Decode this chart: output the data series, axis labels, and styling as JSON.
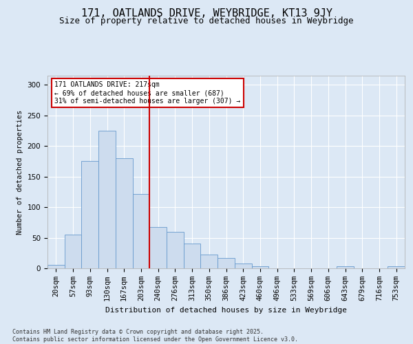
{
  "title": "171, OATLANDS DRIVE, WEYBRIDGE, KT13 9JY",
  "subtitle": "Size of property relative to detached houses in Weybridge",
  "xlabel": "Distribution of detached houses by size in Weybridge",
  "ylabel": "Number of detached properties",
  "bar_labels": [
    "20sqm",
    "57sqm",
    "93sqm",
    "130sqm",
    "167sqm",
    "203sqm",
    "240sqm",
    "276sqm",
    "313sqm",
    "350sqm",
    "386sqm",
    "423sqm",
    "460sqm",
    "496sqm",
    "533sqm",
    "569sqm",
    "606sqm",
    "643sqm",
    "679sqm",
    "716sqm",
    "753sqm"
  ],
  "bar_counts": [
    6,
    55,
    175,
    225,
    180,
    122,
    68,
    60,
    40,
    23,
    17,
    8,
    3,
    0,
    0,
    0,
    0,
    3,
    0,
    0,
    3
  ],
  "bar_color": "#cddcee",
  "bar_edge_color": "#6699cc",
  "vline_position": 5.5,
  "vline_color": "#cc0000",
  "annotation_text": "171 OATLANDS DRIVE: 217sqm\n← 69% of detached houses are smaller (687)\n31% of semi-detached houses are larger (307) →",
  "annotation_box_facecolor": "#ffffff",
  "annotation_box_edgecolor": "#cc0000",
  "ylim": [
    0,
    315
  ],
  "yticks": [
    0,
    50,
    100,
    150,
    200,
    250,
    300
  ],
  "bg_color": "#dce8f5",
  "plot_bg_color": "#dce8f5",
  "footer_text": "Contains HM Land Registry data © Crown copyright and database right 2025.\nContains public sector information licensed under the Open Government Licence v3.0.",
  "title_fontsize": 11,
  "subtitle_fontsize": 9
}
